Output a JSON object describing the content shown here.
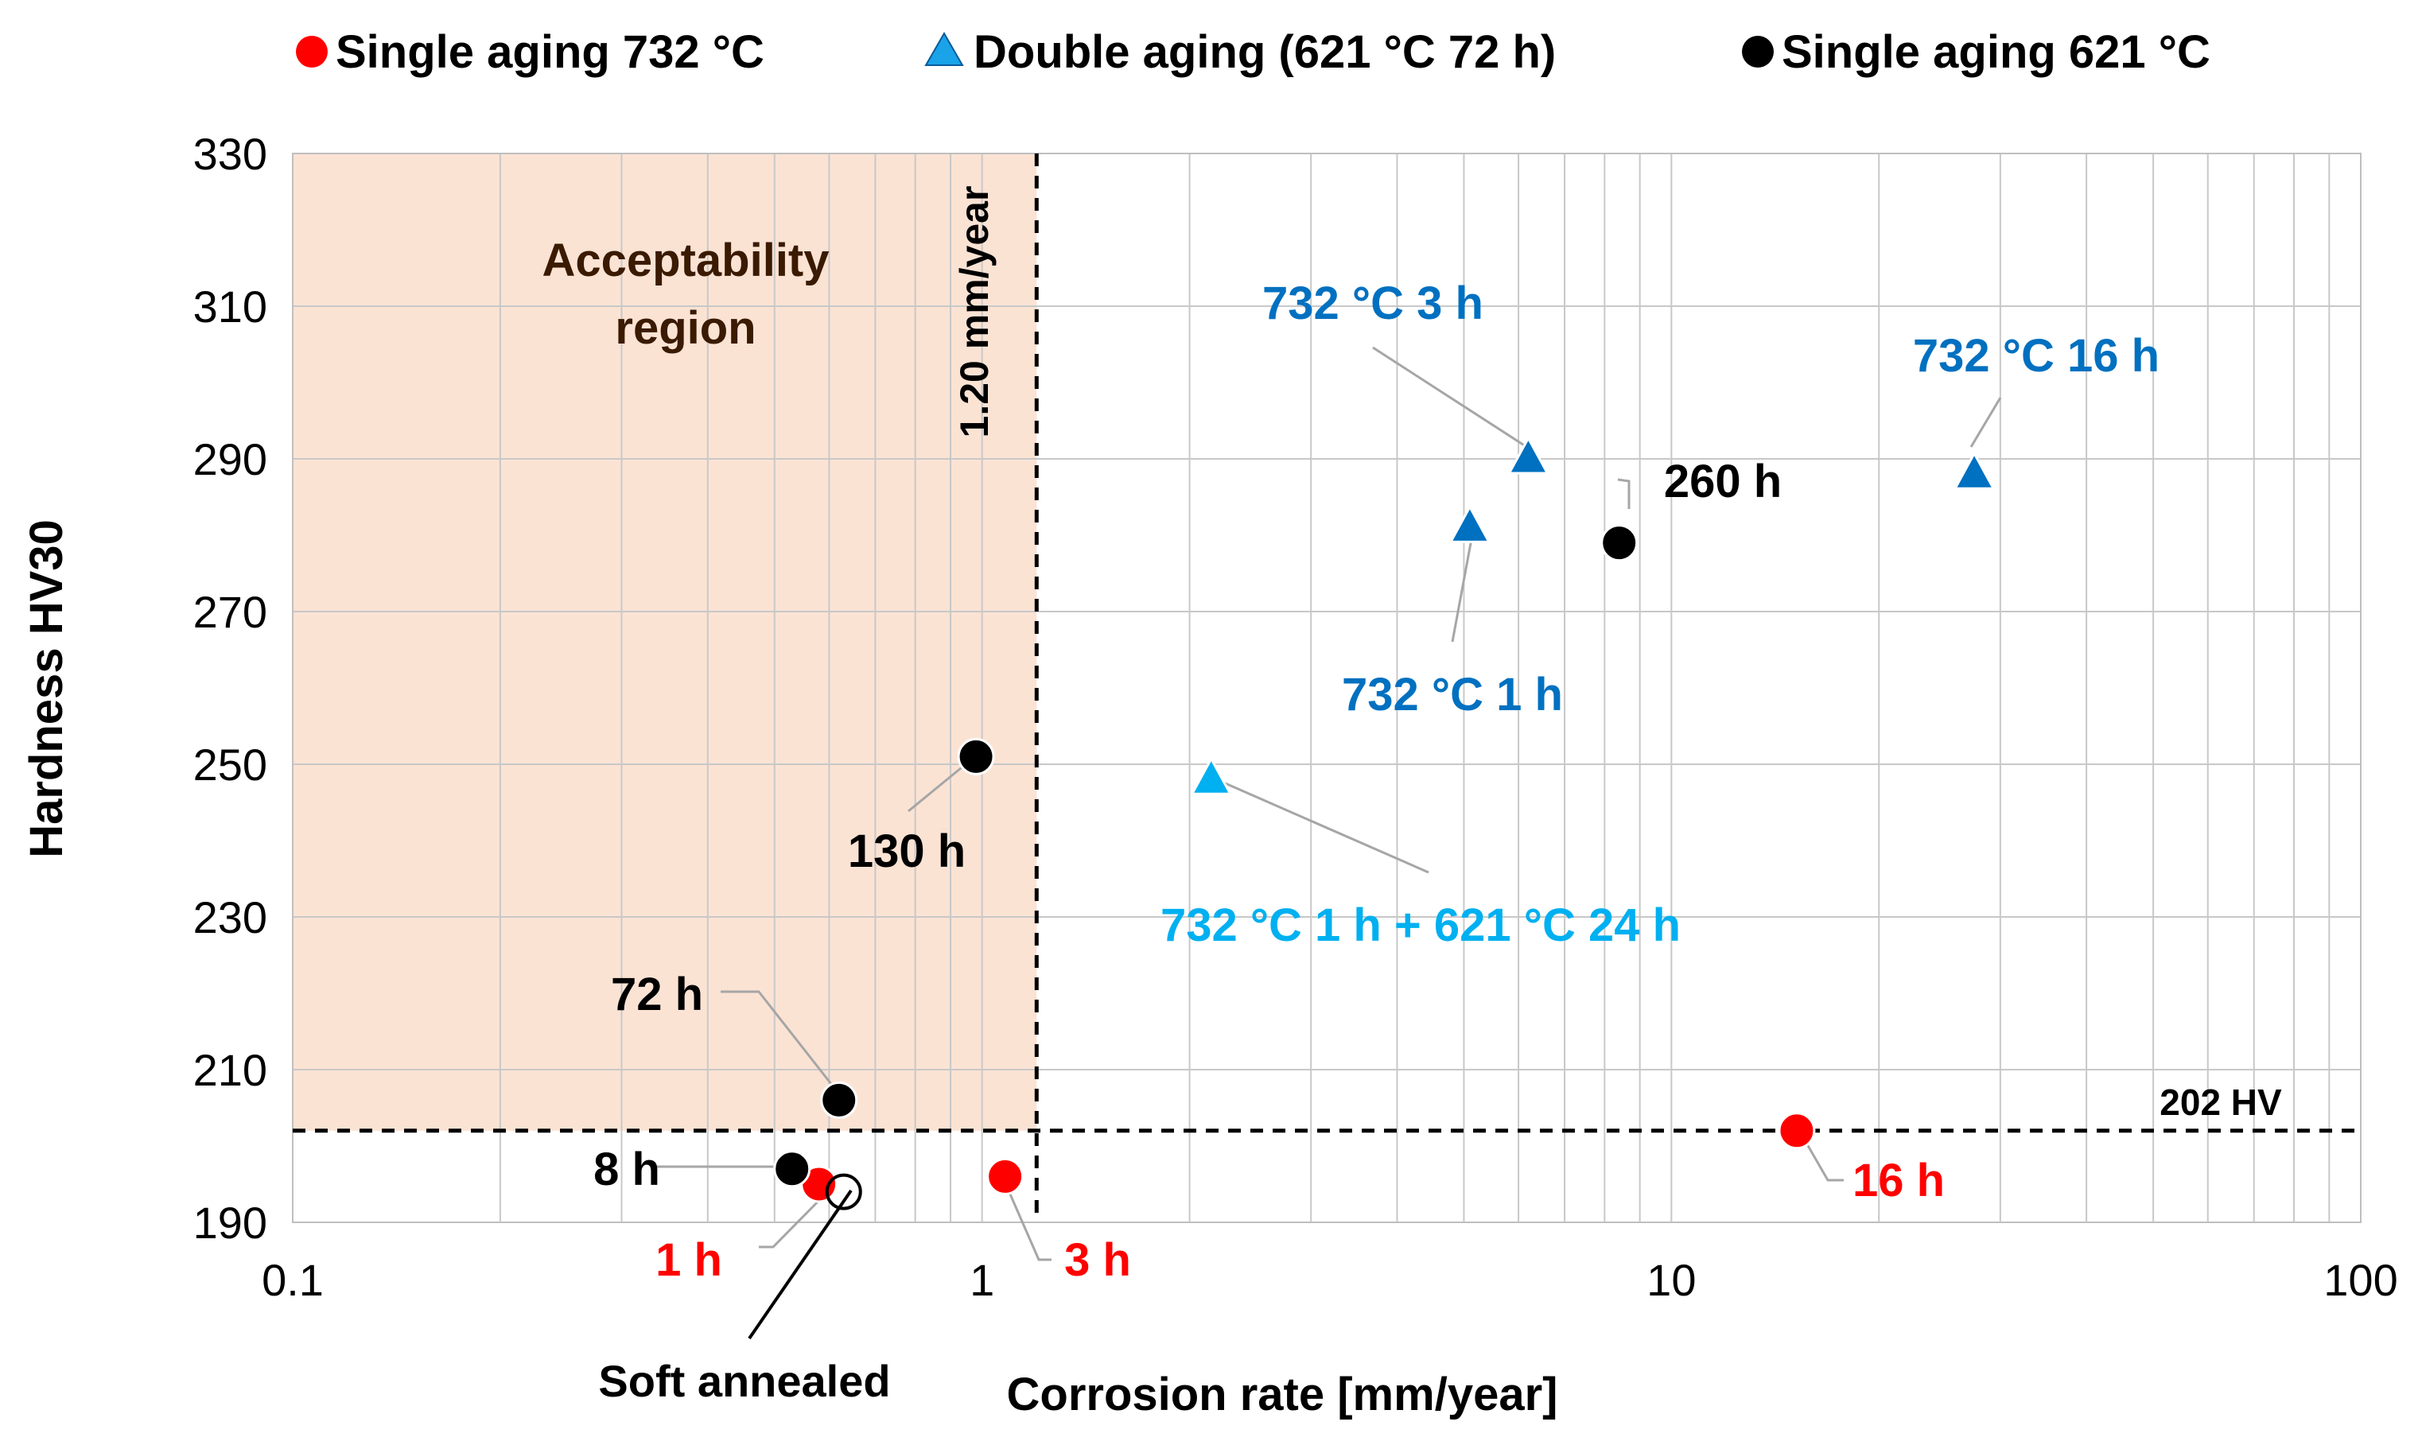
{
  "chart_data": {
    "type": "scatter",
    "title": "",
    "xlabel": "Corrosion rate [mm/year]",
    "ylabel": "Hardness HV30",
    "xscale": "log",
    "xlim": [
      0.1,
      100
    ],
    "ylim": [
      190,
      330
    ],
    "x_ticks": [
      {
        "value": 0.1,
        "label": "0.1"
      },
      {
        "value": 1,
        "label": "1"
      },
      {
        "value": 10,
        "label": "10"
      },
      {
        "value": 100,
        "label": "100"
      }
    ],
    "y_ticks": [
      {
        "value": 190,
        "label": "190"
      },
      {
        "value": 210,
        "label": "210"
      },
      {
        "value": 230,
        "label": "230"
      },
      {
        "value": 250,
        "label": "250"
      },
      {
        "value": 270,
        "label": "270"
      },
      {
        "value": 290,
        "label": "290"
      },
      {
        "value": 310,
        "label": "310"
      },
      {
        "value": 330,
        "label": "330"
      }
    ],
    "grid": true,
    "legend_position": "top",
    "legend": [
      {
        "label": "Single aging 732 °C",
        "marker": "circle",
        "color": "#ff0000"
      },
      {
        "label": "Double aging (621 °C 72 h)",
        "marker": "triangle",
        "color": "#1aa3e8"
      },
      {
        "label": "Single aging 621 °C",
        "marker": "circle",
        "color": "#000000"
      }
    ],
    "series": [
      {
        "name": "Single aging 732 °C",
        "marker": "circle",
        "color": "#ff0000",
        "points": [
          {
            "x": 0.58,
            "y": 195,
            "label": "1 h"
          },
          {
            "x": 1.08,
            "y": 196,
            "label": "3 h"
          },
          {
            "x": 15.2,
            "y": 202,
            "label": "16 h"
          }
        ]
      },
      {
        "name": "Double aging (621 °C 72 h)",
        "marker": "triangle",
        "color": "#0070c0",
        "points": [
          {
            "x": 2.15,
            "y": 248,
            "label": "732 °C 1 h + 621 °C 24 h",
            "color": "#00b0f0"
          },
          {
            "x": 5.1,
            "y": 281,
            "label": "732 °C 1 h"
          },
          {
            "x": 6.2,
            "y": 290,
            "label": "732 °C 3 h"
          },
          {
            "x": 27.5,
            "y": 288,
            "label": "732 °C 16 h"
          }
        ]
      },
      {
        "name": "Single aging 621 °C",
        "marker": "circle",
        "color": "#000000",
        "points": [
          {
            "x": 0.53,
            "y": 197,
            "label": "8 h"
          },
          {
            "x": 0.62,
            "y": 206,
            "label": "72 h"
          },
          {
            "x": 0.98,
            "y": 251,
            "label": "130 h"
          },
          {
            "x": 8.4,
            "y": 279,
            "label": "260 h"
          }
        ]
      },
      {
        "name": "Soft annealed",
        "marker": "open-circle",
        "color": "#000000",
        "points": [
          {
            "x": 0.63,
            "y": 194,
            "label": "Soft annealed"
          }
        ]
      }
    ],
    "thresholds": {
      "corrosion": {
        "value": 1.2,
        "label": "1.20 mm/year"
      },
      "hardness": {
        "value": 202,
        "label": "202 HV"
      }
    },
    "region": {
      "label_line1": "Acceptability",
      "label_line2": "region",
      "color": "#fbe3d4"
    }
  }
}
